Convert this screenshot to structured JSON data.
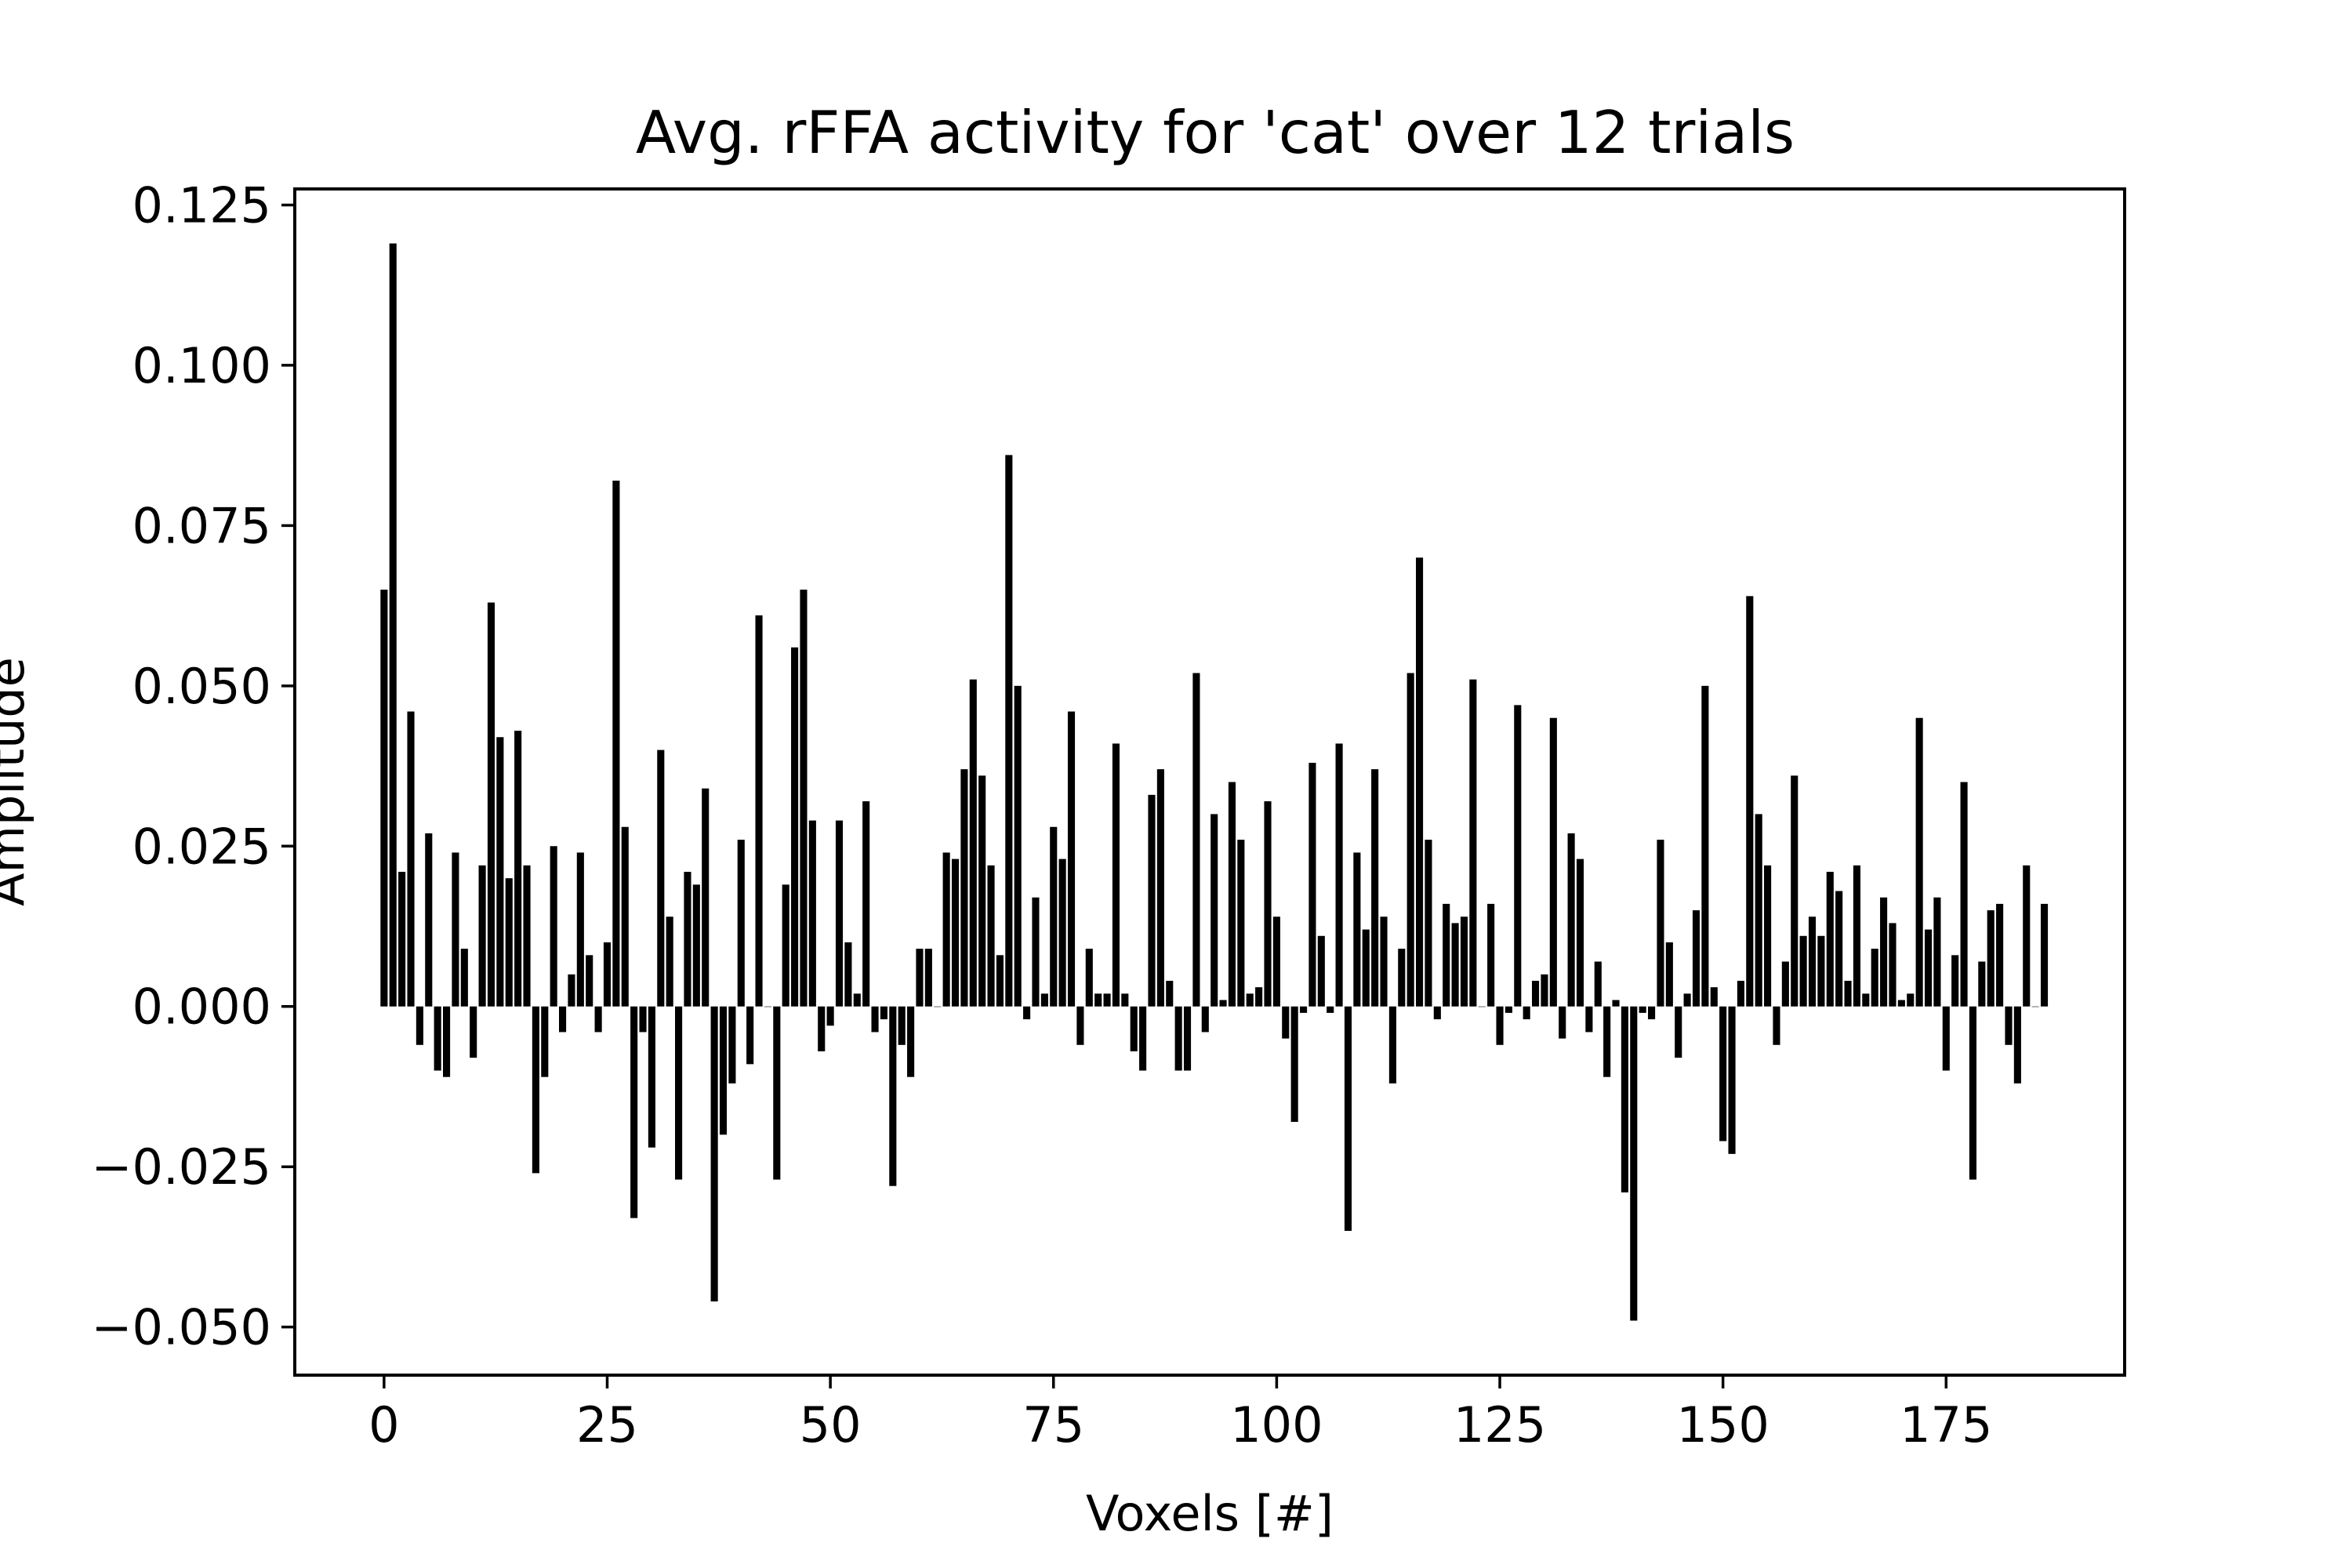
{
  "chart_data": {
    "type": "bar",
    "title": "Avg. rFFA activity for 'cat' over 12 trials",
    "xlabel": "Voxels [#]",
    "ylabel": "Amplitude",
    "xlim": [
      -10,
      195
    ],
    "ylim": [
      -0.0575,
      0.1275
    ],
    "xticks": [
      0,
      25,
      50,
      75,
      100,
      125,
      150,
      175
    ],
    "yticks": [
      -0.05,
      -0.025,
      0.0,
      0.025,
      0.05,
      0.075,
      0.1,
      0.125
    ],
    "ytick_labels": [
      "−0.050",
      "−0.025",
      "0.000",
      "0.025",
      "0.050",
      "0.075",
      "0.100",
      "0.125"
    ],
    "grid": false,
    "bar_color": "#000000",
    "x": [
      0,
      1,
      2,
      3,
      4,
      5,
      6,
      7,
      8,
      9,
      10,
      11,
      12,
      13,
      14,
      15,
      16,
      17,
      18,
      19,
      20,
      21,
      22,
      23,
      24,
      25,
      26,
      27,
      28,
      29,
      30,
      31,
      32,
      33,
      34,
      35,
      36,
      37,
      38,
      39,
      40,
      41,
      42,
      43,
      44,
      45,
      46,
      47,
      48,
      49,
      50,
      51,
      52,
      53,
      54,
      55,
      56,
      57,
      58,
      59,
      60,
      61,
      62,
      63,
      64,
      65,
      66,
      67,
      68,
      69,
      70,
      71,
      72,
      73,
      74,
      75,
      76,
      77,
      78,
      79,
      80,
      81,
      82,
      83,
      84,
      85,
      86,
      87,
      88,
      89,
      90,
      91,
      92,
      93,
      94,
      95,
      96,
      97,
      98,
      99,
      100,
      101,
      102,
      103,
      104,
      105,
      106,
      107,
      108,
      109,
      110,
      111,
      112,
      113,
      114,
      115,
      116,
      117,
      118,
      119,
      120,
      121,
      122,
      123,
      124,
      125,
      126,
      127,
      128,
      129,
      130,
      131,
      132,
      133,
      134,
      135,
      136,
      137,
      138,
      139,
      140,
      141,
      142,
      143,
      144,
      145,
      146,
      147,
      148,
      149,
      150,
      151,
      152,
      153,
      154,
      155,
      156,
      157,
      158,
      159,
      160,
      161,
      162,
      163,
      164,
      165,
      166,
      167,
      168,
      169,
      170,
      171,
      172,
      173,
      174,
      175,
      176,
      177,
      178,
      179,
      180,
      181,
      182,
      183,
      184,
      185,
      186
    ],
    "values": [
      0.065,
      0.119,
      0.021,
      0.046,
      -0.006,
      0.027,
      -0.01,
      -0.011,
      0.024,
      0.009,
      -0.008,
      0.022,
      0.063,
      0.042,
      0.02,
      0.043,
      0.022,
      -0.026,
      -0.011,
      0.025,
      -0.004,
      0.005,
      0.024,
      0.008,
      -0.004,
      0.01,
      0.082,
      0.028,
      -0.033,
      -0.004,
      -0.022,
      0.04,
      0.014,
      -0.027,
      0.021,
      0.019,
      0.034,
      -0.046,
      -0.02,
      -0.012,
      0.026,
      -0.009,
      0.061,
      0.0,
      -0.027,
      0.019,
      0.056,
      0.065,
      0.029,
      -0.007,
      -0.003,
      0.029,
      0.01,
      0.002,
      0.032,
      -0.004,
      -0.002,
      -0.028,
      -0.006,
      -0.011,
      0.009,
      0.009,
      0.0,
      0.024,
      0.023,
      0.037,
      0.051,
      0.036,
      0.022,
      0.008,
      0.086,
      0.05,
      -0.002,
      0.017,
      0.002,
      0.028,
      0.023,
      0.046,
      -0.006,
      0.009,
      0.002,
      0.002,
      0.041,
      0.002,
      -0.007,
      -0.01,
      0.033,
      0.037,
      0.004,
      -0.01,
      -0.01,
      0.052,
      -0.004,
      0.03,
      0.001,
      0.035,
      0.026,
      0.002,
      0.003,
      0.032,
      0.014,
      -0.005,
      -0.018,
      -0.001,
      0.038,
      0.011,
      -0.001,
      0.041,
      -0.035,
      0.024,
      0.012,
      0.037,
      0.014,
      -0.012,
      0.009,
      0.052,
      0.07,
      0.026,
      -0.002,
      0.016,
      0.013,
      0.014,
      0.051,
      0.0,
      0.016,
      -0.006,
      -0.001,
      0.047,
      -0.002,
      0.004,
      0.005,
      0.045,
      -0.005,
      0.027,
      0.023,
      -0.004,
      0.007,
      -0.011,
      0.001,
      -0.029,
      -0.049,
      -0.001,
      -0.002,
      0.026,
      0.01,
      -0.008,
      0.002,
      0.015,
      0.05,
      0.003,
      -0.021,
      -0.023,
      0.004,
      0.064,
      0.03,
      0.022,
      -0.006,
      0.007,
      0.036,
      0.011,
      0.014,
      0.011,
      0.021,
      0.018,
      0.004,
      0.022,
      0.002,
      0.009,
      0.017,
      0.013,
      0.001,
      0.002,
      0.045,
      0.012,
      0.017,
      -0.01,
      0.008,
      0.035,
      -0.027,
      0.007,
      0.015,
      0.016,
      -0.006,
      -0.012,
      0.022,
      0.0,
      0.016
    ]
  }
}
